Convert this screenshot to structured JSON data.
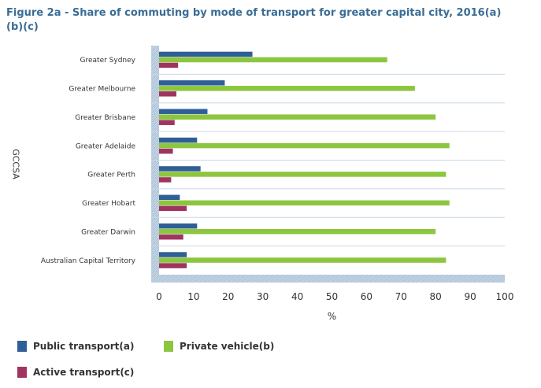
{
  "chart_data": {
    "type": "bar",
    "orientation": "horizontal",
    "title": "Figure 2a - Share of commuting by mode of transport for greater capital city, 2016(a)(b)(c)",
    "xlabel": "%",
    "ylabel": "GCCSA",
    "xlim": [
      0,
      100
    ],
    "xticks": [
      0,
      10,
      20,
      30,
      40,
      50,
      60,
      70,
      80,
      90,
      100
    ],
    "categories": [
      "Greater Sydney",
      "Greater Melbourne",
      "Greater Brisbane",
      "Greater Adelaide",
      "Greater Perth",
      "Greater Hobart",
      "Greater Darwin",
      "Australian Capital Territory"
    ],
    "series": [
      {
        "name": "Public transport(a)",
        "color": "#2f5f96",
        "values": [
          27,
          19,
          14,
          11,
          12,
          6,
          11,
          8
        ]
      },
      {
        "name": "Private vehicle(b)",
        "color": "#8cc63f",
        "values": [
          66,
          74,
          80,
          84,
          83,
          84,
          80,
          83
        ]
      },
      {
        "name": "Active transport(c)",
        "color": "#a03461",
        "values": [
          5.5,
          5,
          4.5,
          4,
          3.5,
          8,
          7,
          8
        ]
      }
    ],
    "legend": [
      "Public transport(a)",
      "Private vehicle(b)",
      "Active transport(c)"
    ]
  }
}
